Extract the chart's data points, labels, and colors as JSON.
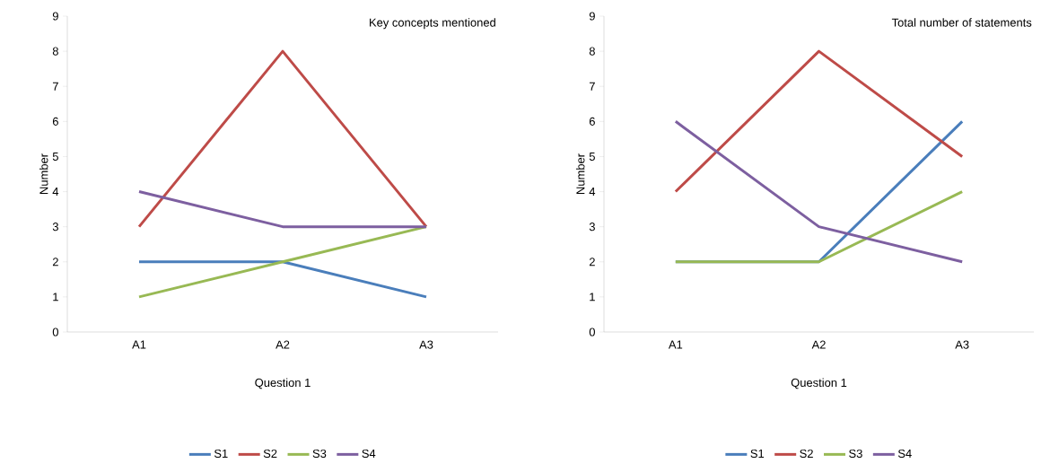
{
  "chart_data": [
    {
      "type": "line",
      "title": "Key concepts mentioned",
      "xlabel": "Question 1",
      "ylabel": "Number",
      "categories": [
        "A1",
        "A2",
        "A3"
      ],
      "series": [
        {
          "name": "S1",
          "color": "#4a7ebb",
          "values": [
            2,
            2,
            1
          ]
        },
        {
          "name": "S2",
          "color": "#be4b48",
          "values": [
            3,
            8,
            3
          ]
        },
        {
          "name": "S3",
          "color": "#98b954",
          "values": [
            1,
            2,
            3
          ]
        },
        {
          "name": "S4",
          "color": "#7d5fa0",
          "values": [
            4,
            3,
            3
          ]
        }
      ],
      "ylim": [
        0,
        9
      ],
      "yticks": [
        0,
        1,
        2,
        3,
        4,
        5,
        6,
        7,
        8,
        9
      ],
      "legend": "bottom",
      "marker": "none"
    },
    {
      "type": "line",
      "title": "Total number of statements",
      "xlabel": "Question 1",
      "ylabel": "Number",
      "categories": [
        "A1",
        "A2",
        "A3"
      ],
      "series": [
        {
          "name": "S1",
          "color": "#4a7ebb",
          "values": [
            2,
            2,
            6
          ]
        },
        {
          "name": "S2",
          "color": "#be4b48",
          "values": [
            4,
            8,
            5
          ]
        },
        {
          "name": "S3",
          "color": "#98b954",
          "values": [
            2,
            2,
            4
          ]
        },
        {
          "name": "S4",
          "color": "#7d5fa0",
          "values": [
            6,
            3,
            2
          ]
        }
      ],
      "ylim": [
        0,
        9
      ],
      "yticks": [
        0,
        1,
        2,
        3,
        4,
        5,
        6,
        7,
        8,
        9
      ],
      "legend": "bottom",
      "marker": "none"
    }
  ]
}
